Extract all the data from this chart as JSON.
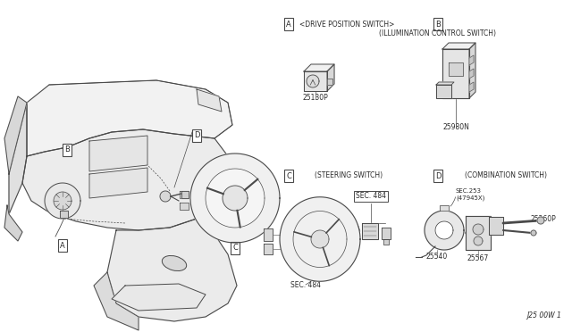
{
  "bg_color": "#ffffff",
  "line_color": "#4a4a4a",
  "text_color": "#2a2a2a",
  "fig_width": 6.4,
  "fig_height": 3.72,
  "dpi": 100,
  "labels": {
    "A_title": "<DRIVE POSITION SWITCH>",
    "A_part": "25130P",
    "B_title": "(ILLUMINATION CONTROL SWITCH)",
    "B_part": "25980N",
    "C_title": "(STEERING SWITCH)",
    "C_sec1": "SEC. 484",
    "C_sec2": "SEC. 484",
    "D_title": "(COMBINATION SWITCH)",
    "D_sec": "SEC.253\n(47945X)",
    "D_part1": "25540",
    "D_part2": "25567",
    "D_part3": "25260P"
  },
  "footer": "J25 00W 1"
}
